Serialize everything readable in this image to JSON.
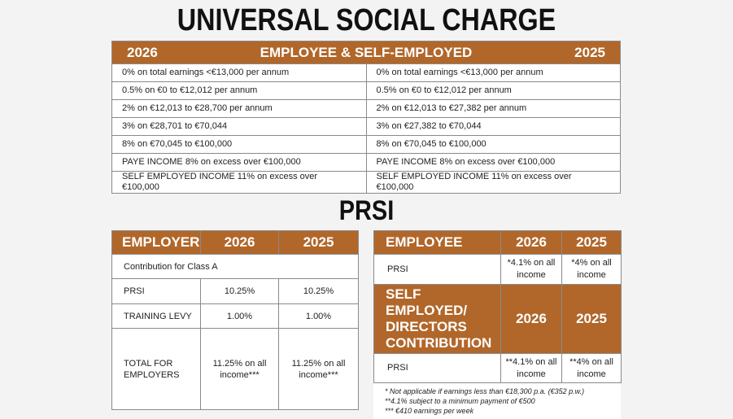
{
  "title": "UNIVERSAL SOCIAL CHARGE",
  "usc": {
    "header": {
      "left": "2026",
      "center": "EMPLOYEE & SELF-EMPLOYED",
      "right": "2025"
    },
    "rows": [
      [
        "0% on total earnings <€13,000 per annum",
        "0% on total earnings <€13,000 per annum"
      ],
      [
        "0.5% on €0 to €12,012 per annum",
        "0.5% on €0 to €12,012 per annum"
      ],
      [
        "2% on €12,013 to €28,700 per annum",
        "2% on €12,013 to €27,382 per annum"
      ],
      [
        "3% on €28,701 to €70,044",
        "3% on €27,382 to €70,044"
      ],
      [
        "8% on €70,045 to €100,000",
        "8% on €70,045 to €100,000"
      ],
      [
        "PAYE INCOME 8% on excess over €100,000",
        "PAYE INCOME 8% on excess over €100,000"
      ],
      [
        "SELF EMPLOYED INCOME 11% on excess over €100,000",
        "SELF EMPLOYED INCOME 11% on excess over €100,000"
      ]
    ]
  },
  "prsi_title": "PRSI",
  "employer": {
    "headers": [
      "EMPLOYER",
      "2026",
      "2025"
    ],
    "class_row": "Contribution for Class A",
    "rows": [
      [
        "PRSI",
        "10.25%",
        "10.25%"
      ],
      [
        "TRAINING LEVY",
        "1.00%",
        "1.00%"
      ],
      [
        "TOTAL FOR EMPLOYERS",
        "11.25% on all income***",
        "11.25% on all income***"
      ]
    ]
  },
  "employee": {
    "headers": [
      "EMPLOYEE",
      "2026",
      "2025"
    ],
    "row": [
      "PRSI",
      "*4.1% on all income",
      "*4% on all income"
    ],
    "se_headers": [
      "SELF EMPLOYED/ DIRECTORS CONTRIBUTION",
      "2026",
      "2025"
    ],
    "se_row": [
      "PRSI",
      "**4.1% on all income",
      "**4% on all income"
    ]
  },
  "footnotes": [
    "* Not applicable if earnings less than €18,300 p.a. (€352 p.w.)",
    "**4.1% subject to a minimum payment of €500",
    "*** €410 earnings per week"
  ],
  "colors": {
    "header": "#b1672a"
  }
}
